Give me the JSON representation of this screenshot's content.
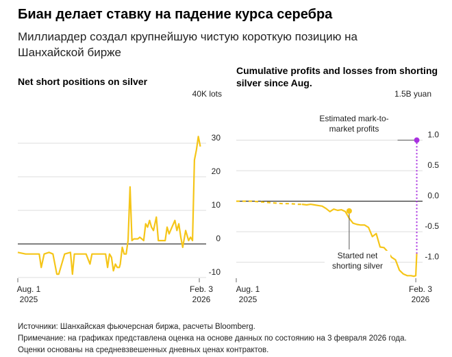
{
  "header": {
    "title": "Биан делает ставку на падение курса серебра",
    "subtitle": "Миллиардер создал крупнейшую чистую короткую позицию на Шанхайской бирже"
  },
  "colors": {
    "series": "#f5c518",
    "marker": "#f5c518",
    "annotation": "#a830e0",
    "zero_line": "#000000",
    "grid": "#dcdcdc"
  },
  "chart_data": [
    {
      "type": "line",
      "title": "Net short positions on silver",
      "unit": "40K lots",
      "ylim": [
        -10,
        40
      ],
      "yticks": [
        {
          "value": 30,
          "label": "30"
        },
        {
          "value": 20,
          "label": "20"
        },
        {
          "value": 10,
          "label": "10"
        },
        {
          "value": 0,
          "label": "0"
        },
        {
          "value": -10,
          "label": "-10"
        }
      ],
      "xlim": [
        "2025-08-01",
        "2026-02-10"
      ],
      "xticks": [
        {
          "value": "2025-08-01",
          "label": "Aug. 1",
          "year": "2025"
        },
        {
          "value": "2026-02-03",
          "label": "Feb. 3",
          "year": "2026"
        }
      ],
      "grid": true,
      "series": [
        {
          "x": [
            "2025-08-01",
            "2025-08-09",
            "2025-08-17",
            "2025-08-23",
            "2025-08-25",
            "2025-08-28",
            "2025-09-02",
            "2025-09-06",
            "2025-09-10",
            "2025-09-12",
            "2025-09-18",
            "2025-09-24",
            "2025-09-26",
            "2025-09-28",
            "2025-10-04",
            "2025-10-10",
            "2025-10-14",
            "2025-10-16",
            "2025-10-20",
            "2025-10-26",
            "2025-10-30",
            "2025-11-01",
            "2025-11-03",
            "2025-11-05",
            "2025-11-07",
            "2025-11-09",
            "2025-11-11",
            "2025-11-13",
            "2025-11-14",
            "2025-11-16",
            "2025-11-18",
            "2025-11-20",
            "2025-11-22",
            "2025-11-24",
            "2025-11-26",
            "2025-11-28",
            "2025-11-30",
            "2025-12-02",
            "2025-12-04",
            "2025-12-06",
            "2025-12-08",
            "2025-12-10",
            "2025-12-12",
            "2025-12-14",
            "2025-12-16",
            "2025-12-18",
            "2025-12-21",
            "2025-12-23",
            "2025-12-27",
            "2025-12-30",
            "2026-01-01",
            "2026-01-03",
            "2026-01-06",
            "2026-01-09",
            "2026-01-11",
            "2026-01-13",
            "2026-01-15",
            "2026-01-17",
            "2026-01-20",
            "2026-01-23",
            "2026-01-25",
            "2026-01-27",
            "2026-01-29",
            "2026-01-31",
            "2026-02-02",
            "2026-02-04"
          ],
          "values": [
            -2.5,
            -3,
            -3,
            -3,
            -7,
            -3,
            -2.5,
            -3,
            -9,
            -9,
            -3,
            -2.5,
            -9,
            -3,
            -3,
            -3,
            -6,
            -3,
            -3,
            -3,
            -3,
            -7,
            -3,
            -4,
            -8,
            -6,
            -7,
            -7,
            -6,
            -1,
            -3,
            -3,
            1,
            17,
            1,
            1.5,
            1.5,
            1.5,
            2,
            1.5,
            1,
            6,
            5,
            7,
            5,
            4,
            8,
            1,
            1,
            1,
            5,
            3,
            5,
            7,
            4,
            6,
            2,
            -1,
            4,
            1,
            2,
            1,
            25,
            28,
            32,
            29
          ]
        }
      ]
    },
    {
      "type": "line",
      "title": "Cumulative profits and losses from shorting silver since Aug.",
      "unit": "1.5B yuan",
      "ylim": [
        -1.25,
        1.5
      ],
      "yticks": [
        {
          "value": 1.0,
          "label": "1.0"
        },
        {
          "value": 0.5,
          "label": "0.5"
        },
        {
          "value": 0.0,
          "label": "0.0"
        },
        {
          "value": -0.5,
          "label": "-0.5"
        },
        {
          "value": -1.0,
          "label": "-1.0"
        }
      ],
      "xlim": [
        "2025-08-01",
        "2026-02-10"
      ],
      "xticks": [
        {
          "value": "2025-08-01",
          "label": "Aug. 1",
          "year": "2025"
        },
        {
          "value": "2026-02-03",
          "label": "Feb. 3",
          "year": "2026"
        }
      ],
      "grid": true,
      "series": [
        {
          "dashed_segment_end": "2025-10-08",
          "x": [
            "2025-08-01",
            "2025-08-09",
            "2025-08-17",
            "2025-08-25",
            "2025-09-02",
            "2025-09-10",
            "2025-09-18",
            "2025-09-26",
            "2025-10-04",
            "2025-10-08",
            "2025-10-13",
            "2025-10-17",
            "2025-10-21",
            "2025-10-25",
            "2025-10-29",
            "2025-11-02",
            "2025-11-06",
            "2025-11-10",
            "2025-11-14",
            "2025-11-18",
            "2025-11-22",
            "2025-11-26",
            "2025-11-30",
            "2025-12-04",
            "2025-12-08",
            "2025-12-12",
            "2025-12-16",
            "2025-12-20",
            "2025-12-24",
            "2025-12-28",
            "2026-01-01",
            "2026-01-05",
            "2026-01-09",
            "2026-01-13",
            "2026-01-17",
            "2026-01-21",
            "2026-01-25",
            "2026-01-29",
            "2026-02-01",
            "2026-02-03",
            "2026-02-04"
          ],
          "values": [
            0.0,
            0.0,
            0.0,
            -0.01,
            -0.02,
            -0.03,
            -0.04,
            -0.04,
            -0.05,
            -0.05,
            -0.06,
            -0.05,
            -0.06,
            -0.07,
            -0.08,
            -0.12,
            -0.17,
            -0.13,
            -0.15,
            -0.14,
            -0.17,
            -0.28,
            -0.36,
            -0.38,
            -0.39,
            -0.39,
            -0.43,
            -0.58,
            -0.53,
            -0.75,
            -0.76,
            -0.83,
            -0.92,
            -0.96,
            -1.13,
            -1.19,
            -1.22,
            -1.22,
            -1.23,
            -1.22,
            -0.86
          ]
        }
      ],
      "markers": [
        {
          "x": "2025-11-26",
          "y": -0.16,
          "label": "Started net shorting silver"
        },
        {
          "x": "2026-02-04",
          "y": 1.0,
          "label": "Estimated mark-to-market profits",
          "projection_from": -0.86
        }
      ]
    }
  ],
  "footnotes": {
    "source": "Источники: Шанхайская фьючерсная биржа, расчеты Bloomberg.",
    "note": "Примечание: на графиках представлена оценка на основе данных по состоянию на 3 февраля 2026 года.",
    "method": "Оценки основаны на средневзвешенных дневных ценах контрактов."
  }
}
